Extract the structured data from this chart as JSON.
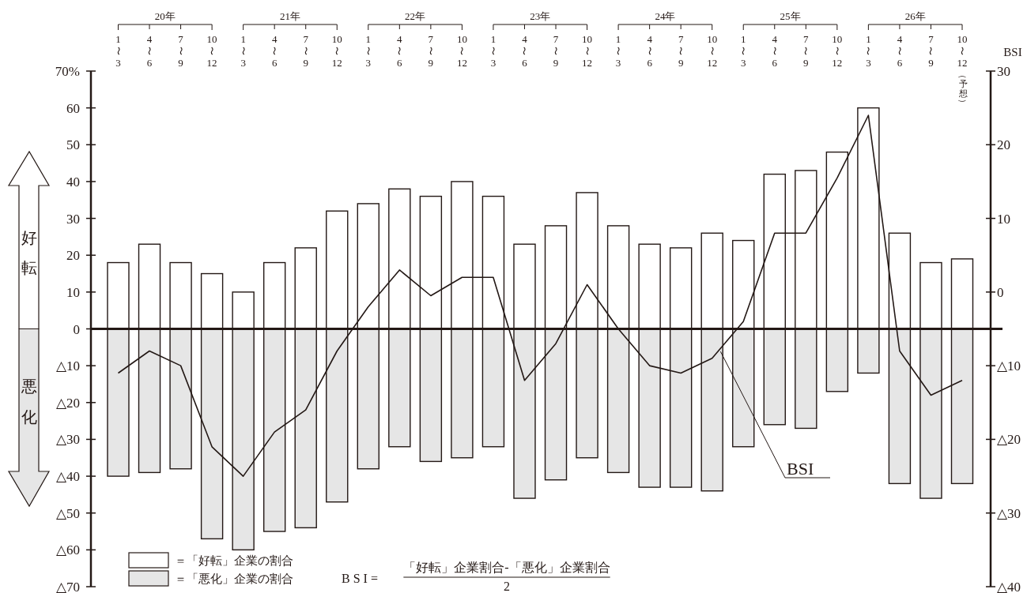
{
  "chart_data": {
    "type": "bar",
    "stacked": true,
    "categories": [
      "1〜3",
      "4〜6",
      "7〜9",
      "10〜12",
      "1〜3",
      "4〜6",
      "7〜9",
      "10〜12",
      "1〜3",
      "4〜6",
      "7〜9",
      "10〜12",
      "1〜3",
      "4〜6",
      "7〜9",
      "10〜12",
      "1〜3",
      "4〜6",
      "7〜9",
      "10〜12",
      "1〜3",
      "4〜6",
      "7〜9",
      "10〜12",
      "1〜3",
      "4〜6",
      "7〜9",
      "10〜12（予想）"
    ],
    "series": [
      {
        "name": "＝「好転」企業の割合",
        "type": "bar",
        "color": "#ffffff",
        "values": [
          18,
          23,
          18,
          15,
          10,
          18,
          22,
          32,
          34,
          38,
          36,
          40,
          36,
          23,
          28,
          37,
          28,
          23,
          22,
          26,
          24,
          42,
          43,
          48,
          60,
          26,
          18,
          19
        ]
      },
      {
        "name": "＝「悪化」企業の割合",
        "type": "bar",
        "color": "#e6e6e6",
        "values": [
          -40,
          -39,
          -38,
          -57,
          -60,
          -55,
          -54,
          -47,
          -38,
          -32,
          -36,
          -35,
          -32,
          -46,
          -41,
          -35,
          -39,
          -43,
          -43,
          -44,
          -32,
          -26,
          -27,
          -17,
          -12,
          -42,
          -46,
          -42
        ]
      },
      {
        "name": "BSI",
        "type": "line",
        "axis": "y2",
        "color": "#231815",
        "values": [
          -11,
          -8,
          -10,
          -21,
          -25,
          -19,
          -16,
          -8,
          -2,
          3,
          -0.5,
          2,
          2,
          -12,
          -7,
          1,
          -5,
          -10,
          -11,
          -9,
          -4,
          8,
          8,
          15.5,
          24,
          -8,
          -14,
          -12
        ]
      }
    ],
    "ylim": [
      -70,
      70
    ],
    "yticks": [
      {
        "value": -70,
        "label": "△70"
      },
      {
        "value": -60,
        "label": "△60"
      },
      {
        "value": -50,
        "label": "△50"
      },
      {
        "value": -40,
        "label": "△40"
      },
      {
        "value": -30,
        "label": "△30"
      },
      {
        "value": -20,
        "label": "△20"
      },
      {
        "value": -10,
        "label": "△10"
      },
      0,
      10,
      20,
      30,
      40,
      50,
      60,
      {
        "value": 70,
        "label": "70%"
      }
    ],
    "y2lim": [
      -40,
      30
    ],
    "y2ticks": [
      {
        "value": -40,
        "label": "△40"
      },
      {
        "value": -30,
        "label": "△30"
      },
      {
        "value": -20,
        "label": "△20"
      },
      {
        "value": -10,
        "label": "△10"
      },
      0,
      10,
      20,
      30
    ],
    "y2label": "BSI",
    "legend": "bottom left",
    "annotations": [
      "20年",
      "21年",
      "22年",
      "23年",
      "24年",
      "25年",
      "26年",
      "好転",
      "悪化",
      "B S I =",
      "「好転」企業割合-「悪化」企業割合",
      "2"
    ]
  }
}
